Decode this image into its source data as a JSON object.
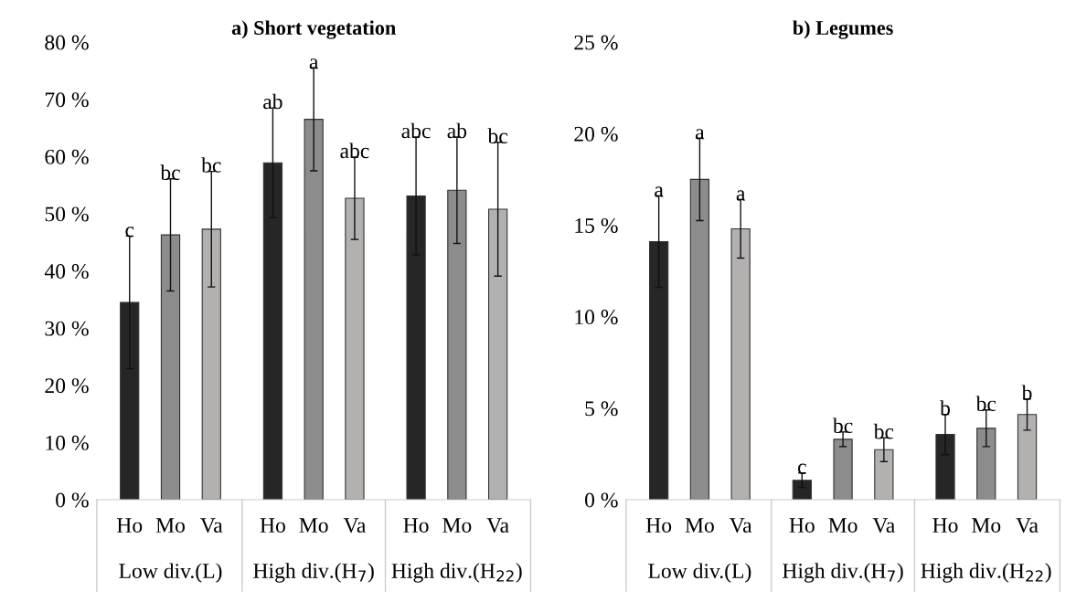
{
  "chart_data": [
    {
      "type": "bar",
      "title": "a) Short vegetation",
      "categories": [
        "Ho",
        "Mo",
        "Va",
        "Ho",
        "Mo",
        "Va",
        "Ho",
        "Mo",
        "Va"
      ],
      "values": [
        34.5,
        46.3,
        47.3,
        58.9,
        66.5,
        52.7,
        53.1,
        54.1,
        50.8
      ],
      "errors": [
        11.6,
        9.8,
        10.1,
        9.6,
        9,
        7.2,
        10.3,
        9.3,
        11.7
      ],
      "colors": [
        "#262626",
        "#8c8c8c",
        "#b3b0b0",
        "#262626",
        "#8c8c8c",
        "#b3b0b0",
        "#262626",
        "#8c8c8c",
        "#b3b0b0"
      ],
      "value_labels": [
        "c",
        "bc",
        "bc",
        "ab",
        "a",
        "abc",
        "abc",
        "ab",
        "bc"
      ],
      "annotations": [
        "Low div.(L)",
        "High div.(H$_{7}$)",
        "High div.(H$_{22}$)"
      ],
      "ylim": [
        0,
        80
      ],
      "yticks": [
        {
          "value": 0,
          "label": "0 %"
        },
        {
          "value": 10,
          "label": "10 %"
        },
        {
          "value": 20,
          "label": "20 %"
        },
        {
          "value": 30,
          "label": "30 %"
        },
        {
          "value": 40,
          "label": "40 %"
        },
        {
          "value": 50,
          "label": "50 %"
        },
        {
          "value": 60,
          "label": "60 %"
        },
        {
          "value": 70,
          "label": "70 %"
        },
        {
          "value": 80,
          "label": "80 %"
        }
      ]
    },
    {
      "type": "bar",
      "title": "b) Legumes",
      "categories": [
        "Ho",
        "Mo",
        "Va",
        "Ho",
        "Mo",
        "Va",
        "Ho",
        "Mo",
        "Va"
      ],
      "values": [
        14.1,
        17.5,
        14.8,
        1.06,
        3.3,
        2.73,
        3.56,
        3.9,
        4.65
      ],
      "errors": [
        2.5,
        2.25,
        1.6,
        0.4,
        0.4,
        0.65,
        1.1,
        1.0,
        0.85
      ],
      "colors": [
        "#262626",
        "#8c8c8c",
        "#b3b0b0",
        "#262626",
        "#8c8c8c",
        "#b3b0b0",
        "#262626",
        "#8c8c8c",
        "#b3b0b0"
      ],
      "value_labels": [
        "a",
        "a",
        "a",
        "c",
        "bc",
        "bc",
        "b",
        "bc",
        "b"
      ],
      "annotations": [
        "Low div.(L)",
        "High div.(H$_{7}$)",
        "High div.(H$_{22}$)"
      ],
      "ylim": [
        0,
        25
      ],
      "yticks": [
        {
          "value": 0,
          "label": "0 %"
        },
        {
          "value": 5,
          "label": "5 %"
        },
        {
          "value": 10,
          "label": "10 %"
        },
        {
          "value": 15,
          "label": "15 %"
        },
        {
          "value": 20,
          "label": "20 %"
        },
        {
          "value": 25,
          "label": "25 %"
        }
      ]
    }
  ]
}
